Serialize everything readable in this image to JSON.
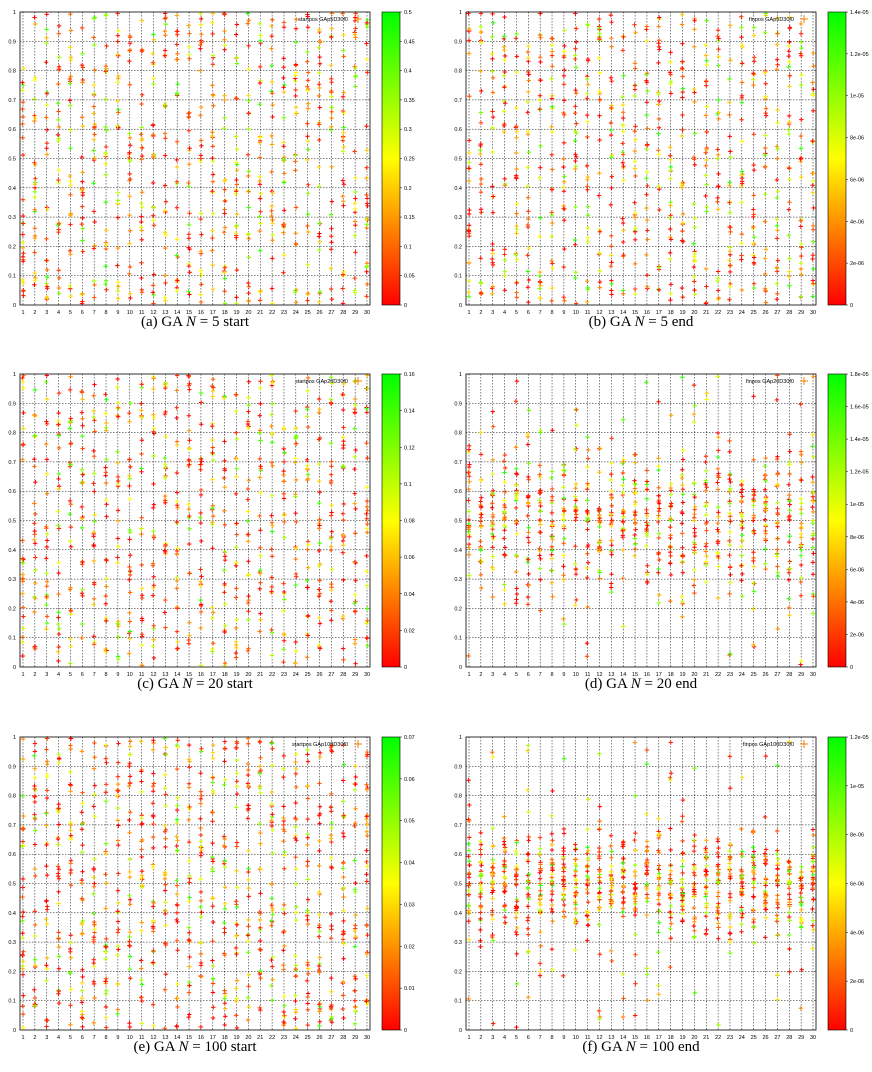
{
  "figure": {
    "panels": [
      {
        "id": "a",
        "caption_pre": "(a)  GA ",
        "caption_n": "N",
        "caption_eq": " = 5 start"
      },
      {
        "id": "b",
        "caption_pre": "(b)  GA ",
        "caption_n": "N",
        "caption_eq": " = 5 end"
      },
      {
        "id": "c",
        "caption_pre": "(c)  GA ",
        "caption_n": "N",
        "caption_eq": " = 20 start"
      },
      {
        "id": "d",
        "caption_pre": "(d)  GA ",
        "caption_n": "N",
        "caption_eq": " = 20 end"
      },
      {
        "id": "e",
        "caption_pre": "(e)  GA ",
        "caption_n": "N",
        "caption_eq": " = 100 start"
      },
      {
        "id": "f",
        "caption_pre": "(f)  GA ",
        "caption_n": "N",
        "caption_eq": " = 100 end"
      }
    ]
  },
  "chart_data": [
    {
      "type": "scatter",
      "legend": "startpos GAp5D30f0",
      "legend_position": "top-right",
      "x_ticks": [
        1,
        2,
        3,
        4,
        5,
        6,
        7,
        8,
        9,
        10,
        11,
        12,
        13,
        14,
        15,
        16,
        17,
        18,
        19,
        20,
        21,
        22,
        23,
        24,
        25,
        26,
        27,
        28,
        29,
        30
      ],
      "y_ticks": [
        "0",
        "0.1",
        "0.2",
        "0.3",
        "0.4",
        "0.5",
        "0.6",
        "0.7",
        "0.8",
        "0.9",
        "1"
      ],
      "xlim": [
        1,
        30
      ],
      "ylim": [
        0,
        1
      ],
      "grid": true,
      "colorbar_ticks": [
        "0",
        "0.05",
        "0.1",
        "0.15",
        "0.2",
        "0.25",
        "0.3",
        "0.35",
        "0.4",
        "0.45",
        "0.5"
      ],
      "colorbar_range": [
        0,
        0.5
      ],
      "colorbar_colors": [
        "#ff0000",
        "#ffff00",
        "#00ff00"
      ],
      "distribution": "uniform",
      "points_per_column": 26,
      "seed": 11
    },
    {
      "type": "scatter",
      "legend": "finpos GAp5D30f0",
      "legend_position": "top-right",
      "x_ticks": [
        1,
        2,
        3,
        4,
        5,
        6,
        7,
        8,
        9,
        10,
        11,
        12,
        13,
        14,
        15,
        16,
        17,
        18,
        19,
        20,
        21,
        22,
        23,
        24,
        25,
        26,
        27,
        28,
        29,
        30
      ],
      "y_ticks": [
        "0",
        "0.1",
        "0.2",
        "0.3",
        "0.4",
        "0.5",
        "0.6",
        "0.7",
        "0.8",
        "0.9",
        "1"
      ],
      "xlim": [
        1,
        30
      ],
      "ylim": [
        0,
        1
      ],
      "grid": true,
      "colorbar_ticks": [
        "0",
        "2e-06",
        "4e-06",
        "6e-06",
        "8e-06",
        "1e-05",
        "1.2e-05",
        "1.4e-05"
      ],
      "colorbar_range": [
        0,
        1.4e-05
      ],
      "colorbar_colors": [
        "#ff0000",
        "#ffff00",
        "#00ff00"
      ],
      "distribution": "uniform",
      "points_per_column": 26,
      "seed": 23
    },
    {
      "type": "scatter",
      "legend": "startpos GAp20D30f0",
      "legend_position": "top-right",
      "x_ticks": [
        1,
        2,
        3,
        4,
        5,
        6,
        7,
        8,
        9,
        10,
        11,
        12,
        13,
        14,
        15,
        16,
        17,
        18,
        19,
        20,
        21,
        22,
        23,
        24,
        25,
        26,
        27,
        28,
        29,
        30
      ],
      "y_ticks": [
        "0",
        "0.1",
        "0.2",
        "0.3",
        "0.4",
        "0.5",
        "0.6",
        "0.7",
        "0.8",
        "0.9",
        "1"
      ],
      "xlim": [
        1,
        30
      ],
      "ylim": [
        0,
        1
      ],
      "grid": true,
      "colorbar_ticks": [
        "0",
        "0.02",
        "0.04",
        "0.06",
        "0.08",
        "0.1",
        "0.12",
        "0.14",
        "0.16"
      ],
      "colorbar_range": [
        0,
        0.16
      ],
      "colorbar_colors": [
        "#ff0000",
        "#ffff00",
        "#00ff00"
      ],
      "distribution": "uniform",
      "points_per_column": 26,
      "seed": 37
    },
    {
      "type": "scatter",
      "legend": "finpos GAp20D30f0",
      "legend_position": "top-right",
      "x_ticks": [
        1,
        2,
        3,
        4,
        5,
        6,
        7,
        8,
        9,
        10,
        11,
        12,
        13,
        14,
        15,
        16,
        17,
        18,
        19,
        20,
        21,
        22,
        23,
        24,
        25,
        26,
        27,
        28,
        29,
        30
      ],
      "y_ticks": [
        "0",
        "0.1",
        "0.2",
        "0.3",
        "0.4",
        "0.5",
        "0.6",
        "0.7",
        "0.8",
        "0.9",
        "1"
      ],
      "xlim": [
        1,
        30
      ],
      "ylim": [
        0,
        1
      ],
      "grid": true,
      "colorbar_ticks": [
        "0",
        "2e-06",
        "4e-06",
        "6e-06",
        "8e-06",
        "1e-05",
        "1.2e-05",
        "1.4e-05",
        "1.6e-05",
        "1.8e-05"
      ],
      "colorbar_range": [
        0,
        1.8e-05
      ],
      "colorbar_colors": [
        "#ff0000",
        "#ffff00",
        "#00ff00"
      ],
      "distribution": "centered",
      "center": 0.5,
      "spread": 0.24,
      "points_per_column": 26,
      "seed": 41
    },
    {
      "type": "scatter",
      "legend": "startpos GAp100D30f0",
      "legend_position": "top-right",
      "x_ticks": [
        1,
        2,
        3,
        4,
        5,
        6,
        7,
        8,
        9,
        10,
        11,
        12,
        13,
        14,
        15,
        16,
        17,
        18,
        19,
        20,
        21,
        22,
        23,
        24,
        25,
        26,
        27,
        28,
        29,
        30
      ],
      "y_ticks": [
        "0",
        "0.1",
        "0.2",
        "0.3",
        "0.4",
        "0.5",
        "0.6",
        "0.7",
        "0.8",
        "0.9",
        "1"
      ],
      "xlim": [
        1,
        30
      ],
      "ylim": [
        0,
        1
      ],
      "grid": true,
      "colorbar_ticks": [
        "0",
        "0.01",
        "0.02",
        "0.03",
        "0.04",
        "0.05",
        "0.06",
        "0.07"
      ],
      "colorbar_range": [
        0,
        0.07
      ],
      "colorbar_colors": [
        "#ff0000",
        "#ffff00",
        "#00ff00"
      ],
      "distribution": "uniform",
      "points_per_column": 30,
      "seed": 53
    },
    {
      "type": "scatter",
      "legend": "finpos GAp100D30f0",
      "legend_position": "top-right",
      "x_ticks": [
        1,
        2,
        3,
        4,
        5,
        6,
        7,
        8,
        9,
        10,
        11,
        12,
        13,
        14,
        15,
        16,
        17,
        18,
        19,
        20,
        21,
        22,
        23,
        24,
        25,
        26,
        27,
        28,
        29,
        30
      ],
      "y_ticks": [
        "0",
        "0.1",
        "0.2",
        "0.3",
        "0.4",
        "0.5",
        "0.6",
        "0.7",
        "0.8",
        "0.9",
        "1"
      ],
      "xlim": [
        1,
        30
      ],
      "ylim": [
        0,
        1
      ],
      "grid": true,
      "colorbar_ticks": [
        "0",
        "2e-06",
        "4e-06",
        "6e-06",
        "8e-06",
        "1e-05",
        "1.2e-05"
      ],
      "colorbar_range": [
        0,
        1.2e-05
      ],
      "colorbar_colors": [
        "#ff0000",
        "#ffff00",
        "#00ff00"
      ],
      "distribution": "centered",
      "center": 0.5,
      "spread": 0.17,
      "points_per_column": 30,
      "seed": 67
    }
  ]
}
